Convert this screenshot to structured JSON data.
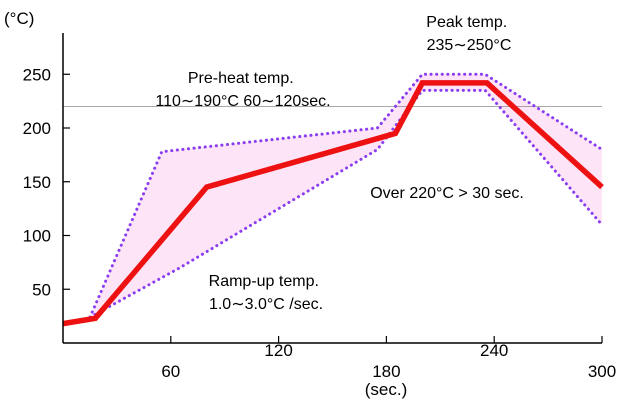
{
  "chart_data": {
    "type": "line",
    "xlabel": "(sec.)",
    "ylabel": "(°C)",
    "xlim": [
      0,
      300
    ],
    "ylim": [
      0,
      280
    ],
    "x_ticks": [
      60,
      120,
      180,
      240,
      300
    ],
    "y_ticks": [
      50,
      100,
      150,
      200,
      250
    ],
    "reference_line_y": 220,
    "profile": {
      "x": [
        0,
        18,
        80,
        185,
        200,
        236,
        300
      ],
      "y": [
        18,
        23,
        145,
        195,
        242,
        242,
        145
      ]
    },
    "envelope": {
      "upper": {
        "x": [
          15,
          55,
          175,
          200,
          235,
          300
        ],
        "y": [
          24,
          178,
          200,
          250,
          250,
          180
        ]
      },
      "lower": {
        "x": [
          15,
          65,
          175,
          200,
          235,
          300
        ],
        "y": [
          24,
          70,
          180,
          235,
          235,
          110
        ]
      }
    },
    "annotations": [
      {
        "lines": [
          "Peak temp.",
          "235∼250°C"
        ]
      },
      {
        "lines": [
          "Pre-heat temp.",
          "110∼190°C 60∼120sec."
        ]
      },
      {
        "lines": [
          "Over 220°C > 30 sec."
        ]
      },
      {
        "lines": [
          "Ramp-up temp.",
          "1.0∼3.0°C /sec."
        ]
      }
    ],
    "colors": {
      "profile": "#ee1111",
      "envelope_line": "#8a3cf0",
      "envelope_fill": "#fde4f6",
      "axis": "#000000",
      "reference_line": "#555555"
    }
  }
}
